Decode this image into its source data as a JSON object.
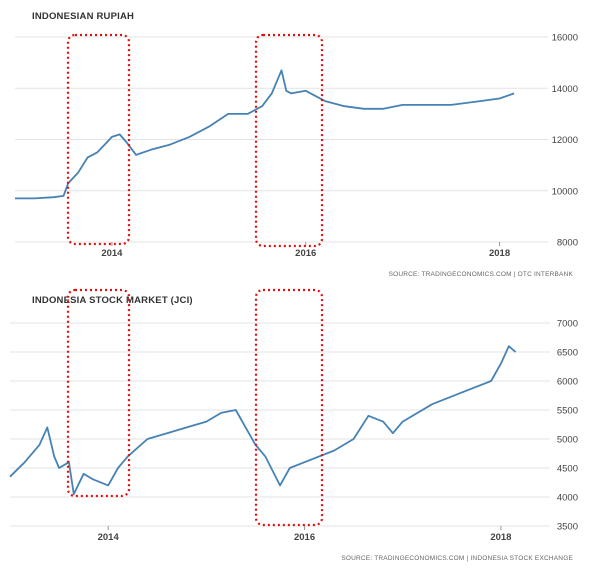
{
  "chart_data": [
    {
      "type": "line",
      "title": "INDONESIAN RUPIAH",
      "source": "SOURCE: TRADINGECONOMICS.COM | OTC INTERBANK",
      "ylim": [
        8000,
        16000
      ],
      "yticks": [
        8000,
        10000,
        12000,
        14000,
        16000
      ],
      "xlim": [
        2013.0,
        2018.5
      ],
      "xticks": [
        {
          "value": 2014,
          "label": "2014"
        },
        {
          "value": 2016,
          "label": "2016"
        },
        {
          "value": 2018,
          "label": "2018"
        }
      ],
      "grid": true,
      "color": "#4682b4",
      "series": [
        {
          "x": [
            2013.0,
            2013.2,
            2013.4,
            2013.5,
            2013.55,
            2013.65,
            2013.75,
            2013.85,
            2013.95,
            2014.0,
            2014.08,
            2014.15,
            2014.25,
            2014.4,
            2014.6,
            2014.8,
            2015.0,
            2015.2,
            2015.4,
            2015.55,
            2015.65,
            2015.75,
            2015.8,
            2015.85,
            2016.0,
            2016.2,
            2016.4,
            2016.6,
            2016.8,
            2017.0,
            2017.5,
            2017.8,
            2018.0,
            2018.15
          ],
          "values": [
            9700,
            9700,
            9750,
            9800,
            10300,
            10700,
            11300,
            11500,
            11900,
            12100,
            12200,
            11900,
            11400,
            11600,
            11800,
            12100,
            12500,
            13000,
            13000,
            13300,
            13800,
            14700,
            13900,
            13800,
            13900,
            13500,
            13300,
            13200,
            13200,
            13350,
            13350,
            13500,
            13600,
            13800
          ]
        }
      ],
      "highlights": [
        [
          2013.5,
          2014.1
        ],
        [
          2015.35,
          2016.0
        ]
      ]
    },
    {
      "type": "line",
      "title": "INDONESIA STOCK MARKET (JCI)",
      "source": "SOURCE: TRADINGECONOMICS.COM | INDONESIA STOCK EXCHANGE",
      "ylim": [
        3500,
        7000
      ],
      "yticks": [
        3500,
        4000,
        4500,
        5000,
        5500,
        6000,
        6500,
        7000
      ],
      "xlim": [
        2013.0,
        2018.5
      ],
      "xticks": [
        {
          "value": 2014,
          "label": "2014"
        },
        {
          "value": 2016,
          "label": "2016"
        },
        {
          "value": 2018,
          "label": "2018"
        }
      ],
      "grid": true,
      "color": "#4682b4",
      "series": [
        {
          "x": [
            2013.0,
            2013.15,
            2013.3,
            2013.38,
            2013.45,
            2013.5,
            2013.6,
            2013.65,
            2013.75,
            2013.85,
            2014.0,
            2014.1,
            2014.2,
            2014.4,
            2014.6,
            2014.8,
            2015.0,
            2015.15,
            2015.3,
            2015.4,
            2015.5,
            2015.6,
            2015.75,
            2015.85,
            2016.0,
            2016.3,
            2016.5,
            2016.65,
            2016.8,
            2016.9,
            2017.0,
            2017.3,
            2017.6,
            2017.9,
            2018.0,
            2018.08,
            2018.15
          ],
          "values": [
            4350,
            4600,
            4900,
            5200,
            4700,
            4500,
            4600,
            4050,
            4400,
            4300,
            4200,
            4500,
            4700,
            5000,
            5100,
            5200,
            5300,
            5450,
            5500,
            5200,
            4900,
            4700,
            4200,
            4500,
            4600,
            4800,
            5000,
            5400,
            5300,
            5100,
            5300,
            5600,
            5800,
            6000,
            6300,
            6600,
            6500
          ]
        }
      ],
      "highlights": [
        [
          2013.5,
          2014.1
        ],
        [
          2015.35,
          2016.0
        ]
      ]
    }
  ]
}
